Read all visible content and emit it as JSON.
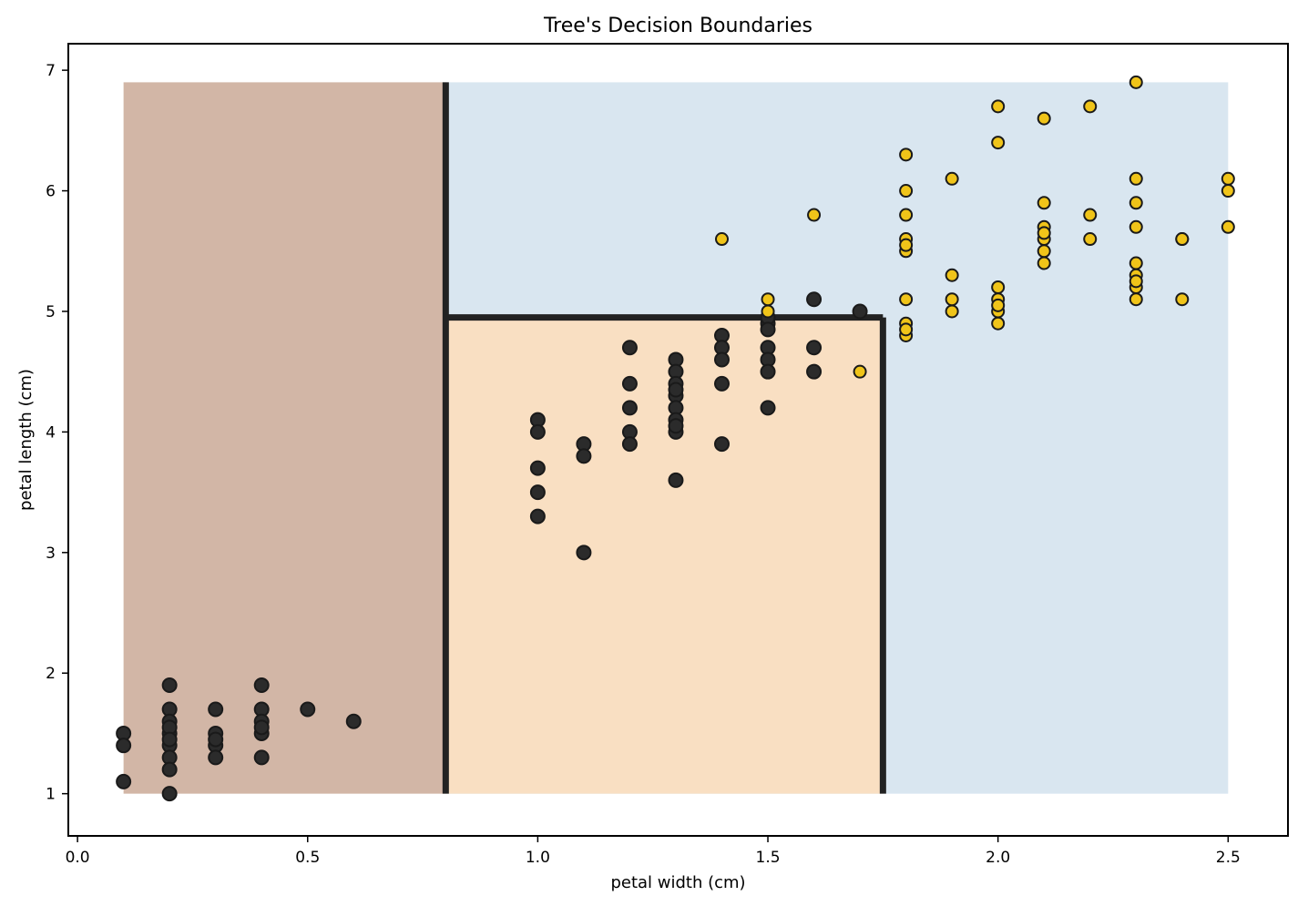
{
  "chart_data": {
    "type": "scatter",
    "title": "Tree's Decision Boundaries",
    "xlabel": "petal width (cm)",
    "ylabel": "petal length (cm)",
    "xlim": [
      -0.02,
      2.63
    ],
    "ylim": [
      0.65,
      7.22
    ],
    "xticks": [
      "0.0",
      "0.5",
      "1.0",
      "1.5",
      "2.0",
      "2.5"
    ],
    "yticks": [
      "1",
      "2",
      "3",
      "4",
      "5",
      "6",
      "7"
    ],
    "grid": false,
    "regions": [
      {
        "name": "region-left",
        "x0": 0.1,
        "x1": 0.8,
        "y0": 1.0,
        "y1": 6.9,
        "color": "#d2b6a6"
      },
      {
        "name": "region-lower-middle",
        "x0": 0.8,
        "x1": 1.75,
        "y0": 1.0,
        "y1": 4.95,
        "color": "#f9dfc2"
      },
      {
        "name": "region-upper-right",
        "x0": 0.8,
        "x1": 2.5,
        "y0": 1.0,
        "y1": 6.9,
        "color": "#d9e6f0"
      }
    ],
    "boundaries": [
      {
        "name": "boundary-petal-width-0.8",
        "x": [
          0.8,
          0.8
        ],
        "y": [
          1.0,
          6.9
        ]
      },
      {
        "name": "boundary-petal-length-4.95",
        "x": [
          0.8,
          1.75
        ],
        "y": [
          4.95,
          4.95
        ]
      },
      {
        "name": "boundary-petal-width-1.75",
        "x": [
          1.75,
          1.75
        ],
        "y": [
          1.0,
          4.95
        ]
      }
    ],
    "series": [
      {
        "color": "#2b2b2b",
        "x": [
          0.1,
          0.1,
          0.1,
          0.2,
          0.2,
          0.2,
          0.2,
          0.2,
          0.2,
          0.2,
          0.2,
          0.2,
          0.2,
          0.3,
          0.3,
          0.3,
          0.3,
          0.3,
          0.4,
          0.4,
          0.4,
          0.4,
          0.4,
          0.4,
          0.5,
          0.6,
          1.0,
          1.0,
          1.0,
          1.0,
          1.0,
          1.1,
          1.1,
          1.1,
          1.2,
          1.2,
          1.2,
          1.2,
          1.2,
          1.3,
          1.3,
          1.3,
          1.3,
          1.3,
          1.3,
          1.3,
          1.3,
          1.3,
          1.3,
          1.4,
          1.4,
          1.4,
          1.4,
          1.4,
          1.5,
          1.5,
          1.5,
          1.5,
          1.5,
          1.5,
          1.5,
          1.6,
          1.6,
          1.6,
          1.7
        ],
        "y": [
          1.5,
          1.4,
          1.1,
          1.9,
          1.7,
          1.6,
          1.5,
          1.4,
          1.3,
          1.2,
          1.0,
          1.55,
          1.45,
          1.7,
          1.5,
          1.4,
          1.3,
          1.45,
          1.9,
          1.7,
          1.6,
          1.5,
          1.3,
          1.55,
          1.7,
          1.6,
          4.1,
          4.0,
          3.7,
          3.5,
          3.3,
          3.9,
          3.8,
          3.0,
          4.7,
          4.4,
          4.2,
          4.0,
          3.9,
          4.6,
          4.5,
          4.4,
          4.3,
          4.2,
          4.1,
          4.0,
          4.05,
          4.35,
          3.6,
          4.8,
          4.7,
          4.6,
          4.4,
          3.9,
          4.9,
          4.7,
          4.6,
          4.5,
          4.2,
          4.95,
          4.85,
          5.1,
          4.7,
          4.5,
          5.0
        ]
      },
      {
        "color": "#f0c419",
        "x": [
          1.4,
          1.5,
          1.5,
          1.6,
          1.7,
          1.8,
          1.8,
          1.8,
          1.8,
          1.8,
          1.8,
          1.8,
          1.8,
          1.8,
          1.8,
          1.9,
          1.9,
          1.9,
          1.9,
          2.0,
          2.0,
          2.0,
          2.0,
          2.0,
          2.0,
          2.0,
          2.1,
          2.1,
          2.1,
          2.1,
          2.1,
          2.1,
          2.1,
          2.2,
          2.2,
          2.2,
          2.3,
          2.3,
          2.3,
          2.3,
          2.3,
          2.3,
          2.3,
          2.3,
          2.3,
          2.4,
          2.4,
          2.4,
          2.5,
          2.5,
          2.5
        ],
        "y": [
          5.6,
          5.1,
          5.0,
          5.8,
          4.5,
          6.3,
          6.0,
          5.8,
          5.6,
          5.5,
          5.1,
          4.9,
          4.8,
          5.55,
          4.85,
          6.1,
          5.3,
          5.1,
          5.0,
          6.7,
          6.4,
          5.2,
          5.1,
          5.0,
          4.9,
          5.05,
          6.6,
          5.9,
          5.7,
          5.6,
          5.5,
          5.4,
          5.65,
          6.7,
          5.8,
          5.6,
          6.9,
          6.1,
          5.9,
          5.7,
          5.4,
          5.3,
          5.2,
          5.1,
          5.25,
          5.6,
          5.1,
          5.6,
          6.1,
          6.0,
          5.7
        ]
      }
    ]
  }
}
